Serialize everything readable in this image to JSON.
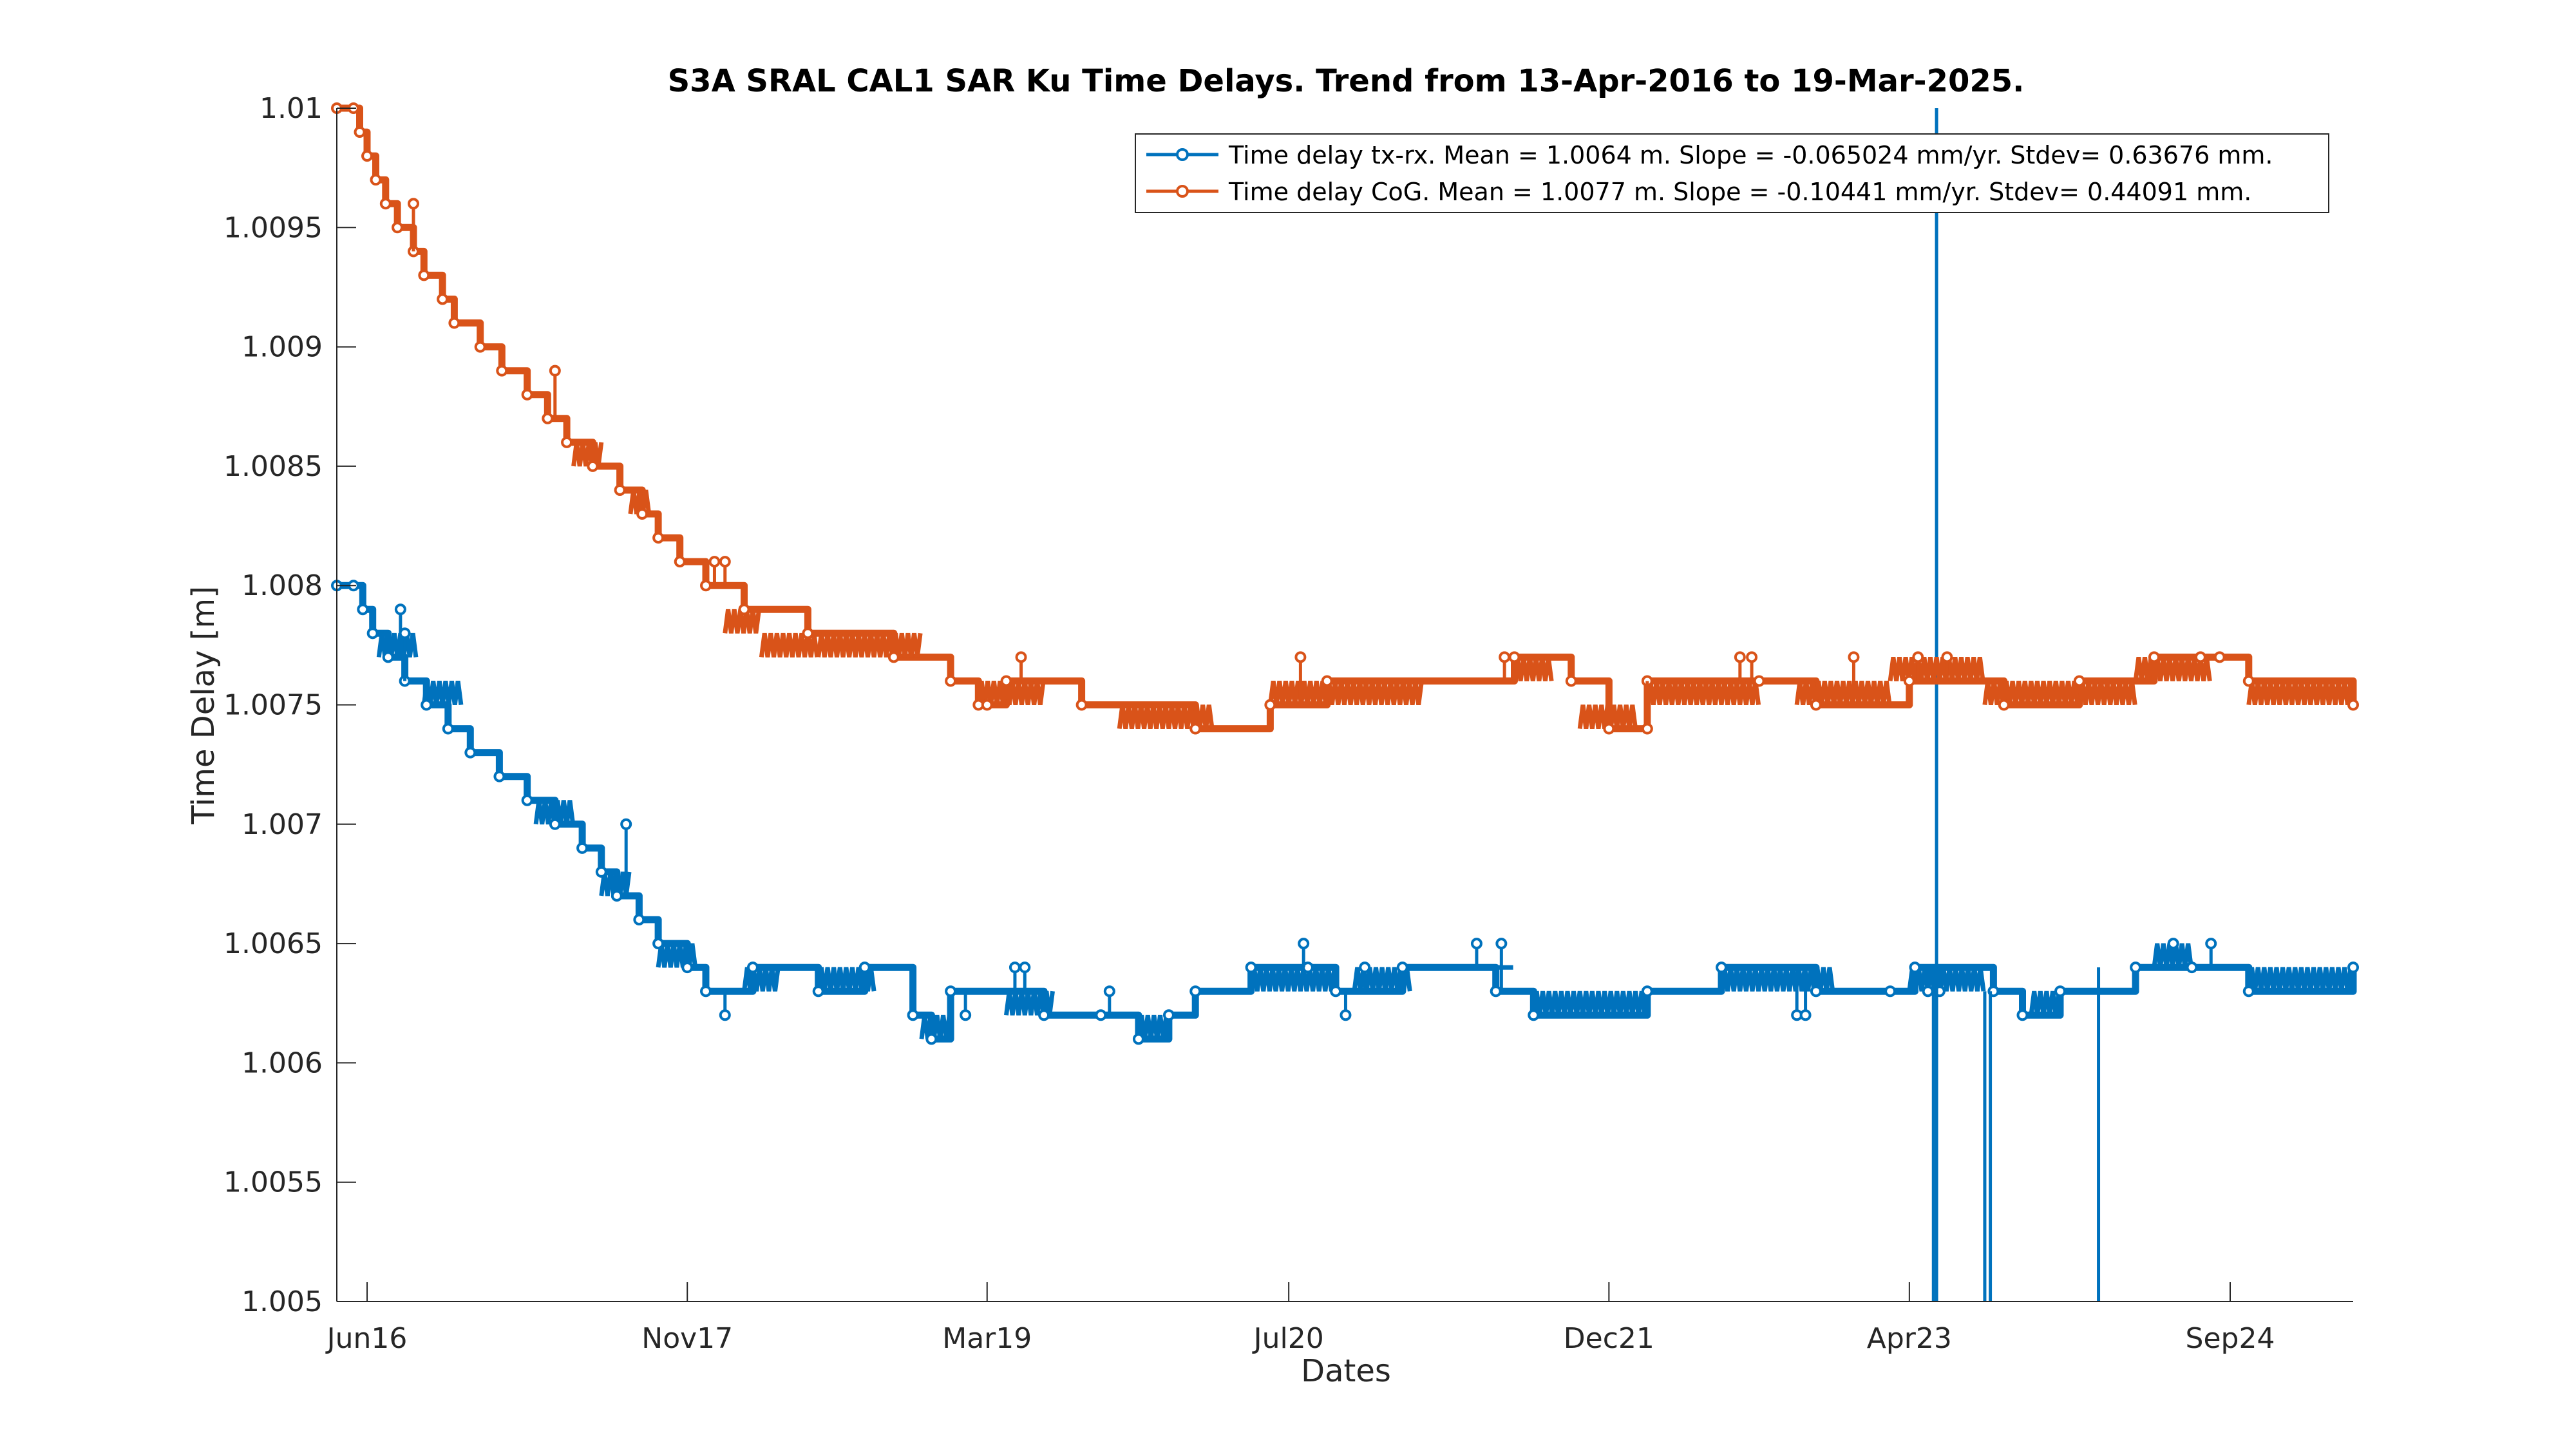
{
  "chart_data": {
    "type": "line",
    "title": "S3A SRAL CAL1 SAR Ku Time Delays. Trend from 13-Apr-2016 to 19-Mar-2025.",
    "xlabel": "Dates",
    "ylabel": "Time Delay [m]",
    "xlim": [
      "2016-04-13",
      "2025-03-19"
    ],
    "ylim": [
      1.005,
      1.01
    ],
    "x_ticks": [
      {
        "date": "2016-06-01",
        "label": "Jun16"
      },
      {
        "date": "2017-11-01",
        "label": "Nov17"
      },
      {
        "date": "2019-03-01",
        "label": "Mar19"
      },
      {
        "date": "2020-07-01",
        "label": "Jul20"
      },
      {
        "date": "2021-12-01",
        "label": "Dec21"
      },
      {
        "date": "2023-04-01",
        "label": "Apr23"
      },
      {
        "date": "2024-09-01",
        "label": "Sep24"
      }
    ],
    "y_ticks": [
      {
        "value": 1.005,
        "label": "1.005"
      },
      {
        "value": 1.0055,
        "label": "1.0055"
      },
      {
        "value": 1.006,
        "label": "1.006"
      },
      {
        "value": 1.0065,
        "label": "1.0065"
      },
      {
        "value": 1.007,
        "label": "1.007"
      },
      {
        "value": 1.0075,
        "label": "1.0075"
      },
      {
        "value": 1.008,
        "label": "1.008"
      },
      {
        "value": 1.0085,
        "label": "1.0085"
      },
      {
        "value": 1.009,
        "label": "1.009"
      },
      {
        "value": 1.0095,
        "label": "1.0095"
      },
      {
        "value": 1.01,
        "label": "1.01"
      }
    ],
    "grid": false,
    "legend_position": "top-right",
    "series": [
      {
        "name": "Time delay tx-rx. Mean = 1.0064 m. Slope = -0.065024 mm/yr. Stdev= 0.63676 mm.",
        "color": "#0072BD",
        "points": [
          [
            "2016-04-13",
            1.008
          ],
          [
            "2016-05-10",
            1.008
          ],
          [
            "2016-05-25",
            1.0079
          ],
          [
            "2016-06-10",
            1.0078
          ],
          [
            "2016-07-05",
            1.0077
          ],
          [
            "2016-08-01",
            1.0076
          ],
          [
            "2016-09-05",
            1.0075
          ],
          [
            "2016-10-10",
            1.0074
          ],
          [
            "2016-11-15",
            1.0073
          ],
          [
            "2017-01-01",
            1.0072
          ],
          [
            "2017-02-15",
            1.0071
          ],
          [
            "2017-04-01",
            1.007
          ],
          [
            "2017-05-15",
            1.0069
          ],
          [
            "2017-06-15",
            1.0068
          ],
          [
            "2017-07-10",
            1.0067
          ],
          [
            "2017-08-15",
            1.0066
          ],
          [
            "2017-09-15",
            1.0065
          ],
          [
            "2017-11-01",
            1.0064
          ],
          [
            "2017-12-01",
            1.0063
          ],
          [
            "2018-02-15",
            1.0064
          ],
          [
            "2018-06-01",
            1.0063
          ],
          [
            "2018-08-15",
            1.0064
          ],
          [
            "2018-11-01",
            1.0062
          ],
          [
            "2018-12-01",
            1.0061
          ],
          [
            "2019-01-01",
            1.0063
          ],
          [
            "2019-06-01",
            1.0062
          ],
          [
            "2019-09-01",
            1.0062
          ],
          [
            "2019-11-01",
            1.0061
          ],
          [
            "2019-12-20",
            1.0062
          ],
          [
            "2020-02-01",
            1.0063
          ],
          [
            "2020-05-01",
            1.0064
          ],
          [
            "2020-08-01",
            1.0064
          ],
          [
            "2020-09-15",
            1.0063
          ],
          [
            "2021-01-01",
            1.0064
          ],
          [
            "2021-06-01",
            1.0063
          ],
          [
            "2021-08-01",
            1.0062
          ],
          [
            "2022-02-01",
            1.0063
          ],
          [
            "2022-06-01",
            1.0064
          ],
          [
            "2022-11-01",
            1.0063
          ],
          [
            "2023-04-10",
            1.0064
          ],
          [
            "2023-08-15",
            1.0063
          ],
          [
            "2023-10-01",
            1.0062
          ],
          [
            "2023-12-01",
            1.0063
          ],
          [
            "2024-04-01",
            1.0064
          ],
          [
            "2024-07-01",
            1.0064
          ],
          [
            "2024-10-01",
            1.0063
          ],
          [
            "2025-03-19",
            1.0064
          ]
        ],
        "step_ranges": [
          [
            "2016-06-20",
            "2016-08-20",
            1.0077,
            1.0078
          ],
          [
            "2016-09-01",
            "2016-11-01",
            1.0075,
            1.0076
          ],
          [
            "2017-03-01",
            "2017-05-01",
            1.007,
            1.0071
          ],
          [
            "2017-06-15",
            "2017-08-01",
            1.0067,
            1.0068
          ],
          [
            "2017-09-15",
            "2017-11-15",
            1.0064,
            1.0065
          ],
          [
            "2018-02-01",
            "2018-04-01",
            1.0063,
            1.0064
          ],
          [
            "2018-06-01",
            "2018-09-01",
            1.0063,
            1.0064
          ],
          [
            "2018-11-15",
            "2019-01-01",
            1.0061,
            1.0062
          ],
          [
            "2019-04-01",
            "2019-06-15",
            1.0062,
            1.0063
          ],
          [
            "2019-11-01",
            "2019-12-20",
            1.0061,
            1.0062
          ],
          [
            "2020-05-01",
            "2020-09-15",
            1.0063,
            1.0064
          ],
          [
            "2020-10-15",
            "2021-01-15",
            1.0063,
            1.0064
          ],
          [
            "2021-01-20",
            "2021-07-01",
            1.0064,
            1.0064
          ],
          [
            "2021-08-01",
            "2022-02-01",
            1.0062,
            1.0063
          ],
          [
            "2022-06-01",
            "2022-12-01",
            1.0063,
            1.0064
          ],
          [
            "2023-04-01",
            "2023-08-01",
            1.0063,
            1.0064
          ],
          [
            "2023-10-15",
            "2023-12-01",
            1.0062,
            1.0063
          ],
          [
            "2024-05-01",
            "2024-07-01",
            1.0064,
            1.0065
          ],
          [
            "2024-10-01",
            "2025-03-19",
            1.0063,
            1.0064
          ]
        ],
        "spikes": [
          [
            "2016-07-25",
            1.0079
          ],
          [
            "2016-08-01",
            1.0078
          ],
          [
            "2017-07-25",
            1.007
          ],
          [
            "2018-01-01",
            1.0062
          ],
          [
            "2019-01-25",
            1.0062
          ],
          [
            "2019-04-15",
            1.0064
          ],
          [
            "2019-05-01",
            1.0064
          ],
          [
            "2019-09-15",
            1.0063
          ],
          [
            "2020-07-25",
            1.0065
          ],
          [
            "2020-10-01",
            1.0062
          ],
          [
            "2020-11-01",
            1.0064
          ],
          [
            "2021-05-01",
            1.0065
          ],
          [
            "2021-06-10",
            1.0065
          ],
          [
            "2022-10-01",
            1.0062
          ],
          [
            "2022-10-15",
            1.0062
          ],
          [
            "2023-03-01",
            1.0063
          ],
          [
            "2023-05-01",
            1.0063
          ],
          [
            "2023-05-20",
            1.0063
          ],
          [
            "2024-06-01",
            1.0065
          ],
          [
            "2024-08-01",
            1.0065
          ]
        ],
        "outliers": [
          [
            "2023-05-15",
            1.005,
            1.01
          ],
          [
            "2023-05-10",
            1.005,
            1.0064
          ],
          [
            "2023-08-01",
            1.005,
            1.0063
          ],
          [
            "2023-08-10",
            1.005,
            1.0063
          ],
          [
            "2024-02-01",
            1.005,
            1.0064
          ]
        ]
      },
      {
        "name": "Time delay CoG. Mean = 1.0077 m. Slope = -0.10441 mm/yr. Stdev= 0.44091 mm.",
        "color": "#D95319",
        "points": [
          [
            "2016-04-13",
            1.01
          ],
          [
            "2016-05-10",
            1.01
          ],
          [
            "2016-05-20",
            1.0099
          ],
          [
            "2016-06-01",
            1.0098
          ],
          [
            "2016-06-15",
            1.0097
          ],
          [
            "2016-07-01",
            1.0096
          ],
          [
            "2016-07-20",
            1.0095
          ],
          [
            "2016-08-15",
            1.0094
          ],
          [
            "2016-09-01",
            1.0093
          ],
          [
            "2016-10-01",
            1.0092
          ],
          [
            "2016-10-20",
            1.0091
          ],
          [
            "2016-12-01",
            1.009
          ],
          [
            "2017-01-05",
            1.0089
          ],
          [
            "2017-02-15",
            1.0088
          ],
          [
            "2017-03-20",
            1.0087
          ],
          [
            "2017-04-20",
            1.0086
          ],
          [
            "2017-06-01",
            1.0085
          ],
          [
            "2017-07-15",
            1.0084
          ],
          [
            "2017-08-20",
            1.0083
          ],
          [
            "2017-09-15",
            1.0082
          ],
          [
            "2017-10-20",
            1.0081
          ],
          [
            "2017-12-01",
            1.008
          ],
          [
            "2018-02-01",
            1.0079
          ],
          [
            "2018-05-15",
            1.0078
          ],
          [
            "2018-10-01",
            1.0077
          ],
          [
            "2019-01-01",
            1.0076
          ],
          [
            "2019-02-15",
            1.0075
          ],
          [
            "2019-04-01",
            1.0076
          ],
          [
            "2019-08-01",
            1.0075
          ],
          [
            "2020-02-01",
            1.0074
          ],
          [
            "2020-06-01",
            1.0075
          ],
          [
            "2020-09-01",
            1.0076
          ],
          [
            "2021-07-01",
            1.0077
          ],
          [
            "2021-10-01",
            1.0076
          ],
          [
            "2021-12-01",
            1.0074
          ],
          [
            "2022-02-01",
            1.0076
          ],
          [
            "2022-08-01",
            1.0076
          ],
          [
            "2022-11-01",
            1.0075
          ],
          [
            "2023-04-01",
            1.0076
          ],
          [
            "2023-09-01",
            1.0075
          ],
          [
            "2024-01-01",
            1.0076
          ],
          [
            "2024-05-01",
            1.0077
          ],
          [
            "2024-10-01",
            1.0076
          ],
          [
            "2025-03-19",
            1.0075
          ]
        ],
        "step_ranges": [
          [
            "2017-05-01",
            "2017-06-15",
            1.0085,
            1.0086
          ],
          [
            "2017-08-01",
            "2017-09-01",
            1.0083,
            1.0084
          ],
          [
            "2018-01-01",
            "2018-03-01",
            1.0078,
            1.0079
          ],
          [
            "2018-03-01",
            "2018-06-01",
            1.0077,
            1.0078
          ],
          [
            "2018-06-01",
            "2018-11-15",
            1.0077,
            1.0078
          ],
          [
            "2019-02-15",
            "2019-06-01",
            1.0075,
            1.0076
          ],
          [
            "2019-10-01",
            "2020-03-01",
            1.0074,
            1.0075
          ],
          [
            "2020-06-01",
            "2021-02-01",
            1.0075,
            1.0076
          ],
          [
            "2021-07-01",
            "2021-09-01",
            1.0076,
            1.0077
          ],
          [
            "2021-10-15",
            "2022-01-15",
            1.0074,
            1.0075
          ],
          [
            "2022-02-01",
            "2022-08-01",
            1.0075,
            1.0076
          ],
          [
            "2022-10-01",
            "2023-03-01",
            1.0075,
            1.0076
          ],
          [
            "2023-03-01",
            "2023-08-01",
            1.0076,
            1.0077
          ],
          [
            "2023-08-01",
            "2024-01-01",
            1.0075,
            1.0076
          ],
          [
            "2024-01-01",
            "2024-04-01",
            1.0075,
            1.0076
          ],
          [
            "2024-04-01",
            "2024-08-01",
            1.0076,
            1.0077
          ],
          [
            "2024-10-01",
            "2025-03-19",
            1.0075,
            1.0076
          ]
        ],
        "spikes": [
          [
            "2016-08-15",
            1.0096
          ],
          [
            "2017-04-01",
            1.0089
          ],
          [
            "2017-12-15",
            1.0081
          ],
          [
            "2018-01-01",
            1.0081
          ],
          [
            "2019-03-01",
            1.0075
          ],
          [
            "2019-04-25",
            1.0077
          ],
          [
            "2020-07-20",
            1.0077
          ],
          [
            "2021-06-15",
            1.0077
          ],
          [
            "2022-02-01",
            1.0074
          ],
          [
            "2022-07-01",
            1.0077
          ],
          [
            "2022-07-20",
            1.0077
          ],
          [
            "2023-01-01",
            1.0077
          ],
          [
            "2023-04-15",
            1.0077
          ],
          [
            "2023-06-01",
            1.0077
          ],
          [
            "2024-07-15",
            1.0077
          ],
          [
            "2024-08-15",
            1.0077
          ]
        ]
      }
    ]
  }
}
